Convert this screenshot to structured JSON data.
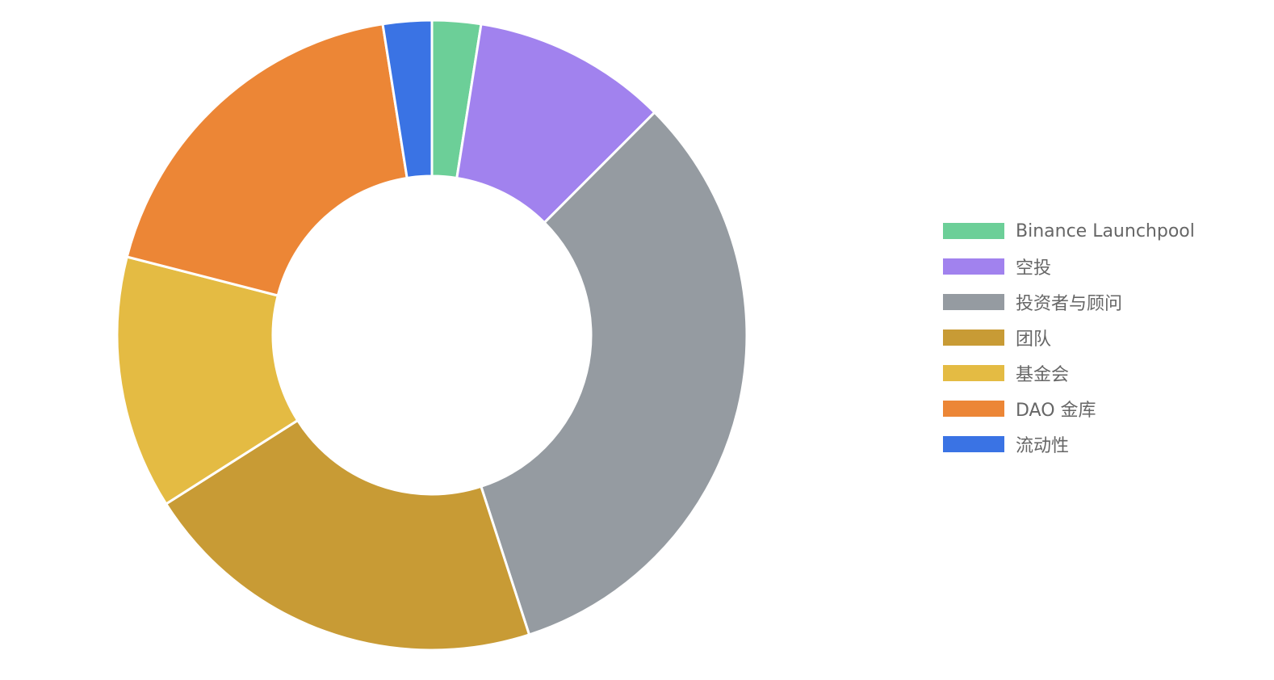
{
  "chart_data": {
    "type": "pie",
    "variant": "doughnut",
    "legend_position": "right",
    "series": [
      {
        "name": "Binance Launchpool",
        "value": 2.5,
        "color": "#6ccf98"
      },
      {
        "name": "空投",
        "value": 10,
        "color": "#a182ee"
      },
      {
        "name": "投资者与顾问",
        "value": 32.5,
        "color": "#959ba1"
      },
      {
        "name": "团队",
        "value": 21,
        "color": "#c89b35"
      },
      {
        "name": "基金会",
        "value": 13,
        "color": "#e4bb43"
      },
      {
        "name": "DAO 金库",
        "value": 18.5,
        "color": "#ec8636"
      },
      {
        "name": "流动性",
        "value": 2.5,
        "color": "#3a73e4"
      }
    ]
  }
}
